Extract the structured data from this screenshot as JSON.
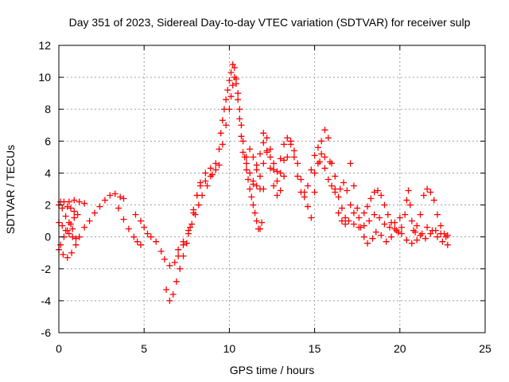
{
  "chart_data": {
    "type": "scatter",
    "title": "Day 351 of 2023, Sidereal Day-to-day VTEC variation (SDTVAR) for receiver sulp",
    "xlabel": "GPS time / hours",
    "ylabel": "SDTVAR / TECUs",
    "xlim": [
      0,
      25
    ],
    "ylim": [
      -6,
      12
    ],
    "xticks": [
      0,
      5,
      10,
      15,
      20,
      25
    ],
    "yticks": [
      -6,
      -4,
      -2,
      0,
      2,
      4,
      6,
      8,
      10,
      12
    ],
    "grid": true,
    "marker": "+",
    "color": "#ff0000",
    "series": [
      {
        "name": "SDTVAR",
        "points": [
          [
            0.0,
            -0.8
          ],
          [
            0.25,
            -1.1
          ],
          [
            0.5,
            -1.3
          ],
          [
            0.75,
            -1.0
          ],
          [
            1.0,
            -0.5
          ],
          [
            1.2,
            0.0
          ],
          [
            1.5,
            0.6
          ],
          [
            1.8,
            1.0
          ],
          [
            2.1,
            1.5
          ],
          [
            2.4,
            1.9
          ],
          [
            2.7,
            2.3
          ],
          [
            3.0,
            2.6
          ],
          [
            3.3,
            2.7
          ],
          [
            3.6,
            2.5
          ],
          [
            3.8,
            2.4
          ],
          [
            0.0,
            0.9
          ],
          [
            0.2,
            0.7
          ],
          [
            0.4,
            0.4
          ],
          [
            0.6,
            0.2
          ],
          [
            0.8,
            0.0
          ],
          [
            1.0,
            -0.1
          ],
          [
            0.8,
            0.5
          ],
          [
            0.6,
            0.9
          ],
          [
            0.4,
            1.3
          ],
          [
            0.2,
            1.8
          ],
          [
            0.1,
            2.2
          ],
          [
            0.0,
            2.0
          ],
          [
            0.3,
            2.2
          ],
          [
            0.6,
            2.2
          ],
          [
            0.9,
            2.3
          ],
          [
            1.2,
            2.2
          ],
          [
            1.5,
            2.1
          ],
          [
            0.1,
            -0.5
          ],
          [
            0.3,
            0.0
          ],
          [
            0.5,
            0.4
          ],
          [
            0.7,
            0.8
          ],
          [
            0.9,
            1.2
          ],
          [
            1.1,
            1.4
          ],
          [
            0.9,
            1.6
          ],
          [
            0.7,
            1.8
          ],
          [
            0.5,
            1.9
          ],
          [
            3.5,
            1.8
          ],
          [
            3.8,
            1.1
          ],
          [
            4.1,
            0.5
          ],
          [
            4.4,
            0.0
          ],
          [
            4.6,
            -0.3
          ],
          [
            4.8,
            -0.5
          ],
          [
            4.5,
            1.4
          ],
          [
            4.8,
            1.0
          ],
          [
            5.0,
            0.6
          ],
          [
            5.2,
            0.2
          ],
          [
            5.4,
            0.0
          ],
          [
            5.7,
            -0.3
          ],
          [
            6.0,
            -0.9
          ],
          [
            6.2,
            -1.4
          ],
          [
            6.5,
            -1.8
          ],
          [
            6.8,
            -1.6
          ],
          [
            7.0,
            -1.2
          ],
          [
            7.3,
            -0.5
          ],
          [
            7.6,
            0.4
          ],
          [
            7.9,
            1.5
          ],
          [
            8.1,
            2.6
          ],
          [
            8.3,
            3.2
          ],
          [
            8.6,
            3.5
          ],
          [
            8.9,
            3.8
          ],
          [
            9.2,
            4.2
          ],
          [
            6.3,
            -3.3
          ],
          [
            6.5,
            -4.0
          ],
          [
            6.7,
            -3.6
          ],
          [
            6.9,
            -2.8
          ],
          [
            7.1,
            -2.0
          ],
          [
            7.3,
            -1.2
          ],
          [
            7.5,
            -0.4
          ],
          [
            7.7,
            0.6
          ],
          [
            7.9,
            1.7
          ],
          [
            8.1,
            2.6
          ],
          [
            8.3,
            3.4
          ],
          [
            8.6,
            4.0
          ],
          [
            8.9,
            4.3
          ],
          [
            7.0,
            -0.8
          ],
          [
            7.3,
            -0.3
          ],
          [
            7.6,
            0.2
          ],
          [
            7.8,
            0.8
          ],
          [
            8.0,
            1.4
          ],
          [
            8.2,
            2.0
          ],
          [
            8.4,
            2.6
          ],
          [
            8.7,
            3.2
          ],
          [
            9.0,
            3.9
          ],
          [
            9.2,
            4.6
          ],
          [
            9.4,
            5.5
          ],
          [
            9.5,
            6.5
          ],
          [
            9.6,
            7.3
          ],
          [
            9.7,
            8.0
          ],
          [
            9.8,
            8.6
          ],
          [
            9.9,
            9.2
          ],
          [
            10.0,
            9.8
          ],
          [
            10.1,
            10.3
          ],
          [
            10.2,
            10.8
          ],
          [
            10.3,
            10.6
          ],
          [
            10.4,
            9.9
          ],
          [
            10.5,
            9.0
          ],
          [
            10.6,
            8.0
          ],
          [
            10.7,
            7.0
          ],
          [
            10.8,
            6.0
          ],
          [
            10.9,
            5.0
          ],
          [
            11.0,
            4.2
          ],
          [
            11.1,
            3.6
          ],
          [
            11.2,
            3.0
          ],
          [
            11.3,
            2.5
          ],
          [
            11.4,
            2.0
          ],
          [
            11.5,
            1.5
          ],
          [
            11.6,
            1.0
          ],
          [
            11.7,
            0.5
          ],
          [
            11.8,
            0.5
          ],
          [
            11.9,
            0.9
          ],
          [
            9.4,
            4.5
          ],
          [
            9.6,
            5.8
          ],
          [
            9.8,
            7.0
          ],
          [
            10.0,
            8.0
          ],
          [
            10.1,
            8.8
          ],
          [
            10.2,
            9.5
          ],
          [
            10.3,
            10.0
          ],
          [
            10.4,
            9.6
          ],
          [
            10.5,
            8.6
          ],
          [
            10.6,
            7.4
          ],
          [
            10.7,
            6.3
          ],
          [
            10.8,
            5.3
          ],
          [
            11.0,
            4.6
          ],
          [
            11.2,
            4.0
          ],
          [
            11.4,
            3.5
          ],
          [
            11.6,
            3.2
          ],
          [
            11.8,
            3.0
          ],
          [
            12.0,
            3.0
          ],
          [
            11.4,
            3.3
          ],
          [
            11.6,
            4.2
          ],
          [
            11.8,
            5.2
          ],
          [
            12.0,
            5.9
          ],
          [
            12.2,
            5.4
          ],
          [
            12.4,
            4.3
          ],
          [
            12.6,
            3.2
          ],
          [
            12.8,
            2.6
          ],
          [
            13.0,
            2.9
          ],
          [
            13.2,
            3.8
          ],
          [
            13.4,
            5.0
          ],
          [
            13.6,
            5.8
          ],
          [
            13.8,
            5.0
          ],
          [
            14.0,
            3.8
          ],
          [
            14.2,
            2.8
          ],
          [
            14.4,
            2.5
          ],
          [
            14.6,
            3.2
          ],
          [
            14.8,
            4.2
          ],
          [
            15.0,
            5.1
          ],
          [
            15.2,
            5.6
          ],
          [
            15.4,
            5.2
          ],
          [
            15.6,
            4.3
          ],
          [
            15.8,
            3.6
          ],
          [
            16.0,
            3.2
          ],
          [
            16.2,
            3.0
          ],
          [
            16.4,
            2.5
          ],
          [
            16.6,
            1.8
          ],
          [
            16.8,
            1.2
          ],
          [
            17.0,
            1.0
          ],
          [
            17.3,
            0.8
          ],
          [
            17.6,
            0.6
          ],
          [
            17.9,
            0.7
          ],
          [
            18.2,
            1.0
          ],
          [
            18.5,
            1.4
          ],
          [
            18.8,
            1.2
          ],
          [
            19.1,
            0.8
          ],
          [
            19.4,
            0.6
          ],
          [
            19.7,
            0.9
          ],
          [
            20.0,
            1.2
          ],
          [
            12.0,
            6.5
          ],
          [
            12.2,
            6.2
          ],
          [
            12.4,
            5.5
          ],
          [
            12.6,
            4.6
          ],
          [
            12.8,
            4.1
          ],
          [
            13.0,
            4.9
          ],
          [
            13.2,
            5.8
          ],
          [
            13.4,
            6.2
          ],
          [
            13.6,
            6.0
          ],
          [
            13.8,
            5.4
          ],
          [
            14.0,
            4.6
          ],
          [
            14.2,
            3.6
          ],
          [
            14.4,
            2.8
          ],
          [
            14.6,
            1.9
          ],
          [
            14.8,
            1.2
          ],
          [
            15.0,
            2.8
          ],
          [
            15.2,
            4.6
          ],
          [
            15.4,
            6.0
          ],
          [
            15.6,
            6.7
          ],
          [
            15.8,
            6.2
          ],
          [
            16.0,
            4.6
          ],
          [
            16.2,
            2.8
          ],
          [
            16.4,
            1.5
          ],
          [
            16.6,
            1.0
          ],
          [
            16.8,
            0.8
          ],
          [
            11.0,
            5.0
          ],
          [
            11.2,
            5.5
          ],
          [
            11.4,
            5.0
          ],
          [
            11.6,
            4.5
          ],
          [
            11.8,
            3.8
          ],
          [
            12.0,
            4.6
          ],
          [
            12.2,
            5.3
          ],
          [
            12.4,
            5.0
          ],
          [
            12.6,
            4.2
          ],
          [
            12.8,
            3.5
          ],
          [
            13.0,
            4.0
          ],
          [
            13.2,
            4.8
          ],
          [
            15.0,
            4.0
          ],
          [
            15.3,
            4.7
          ],
          [
            15.6,
            5.0
          ],
          [
            15.9,
            4.7
          ],
          [
            16.2,
            3.8
          ],
          [
            16.5,
            3.0
          ],
          [
            16.7,
            3.4
          ],
          [
            16.9,
            2.9
          ],
          [
            17.1,
            2.0
          ],
          [
            17.3,
            1.5
          ],
          [
            17.1,
            4.6
          ],
          [
            17.3,
            3.2
          ],
          [
            17.5,
            1.8
          ],
          [
            17.7,
            0.6
          ],
          [
            17.9,
            0.0
          ],
          [
            18.1,
            -0.4
          ],
          [
            18.4,
            -0.1
          ],
          [
            18.6,
            0.3
          ],
          [
            18.9,
            0.1
          ],
          [
            19.2,
            -0.3
          ],
          [
            19.5,
            0.0
          ],
          [
            19.8,
            0.4
          ],
          [
            20.1,
            0.2
          ],
          [
            20.4,
            -0.2
          ],
          [
            20.7,
            -0.4
          ],
          [
            21.0,
            -0.2
          ],
          [
            21.3,
            0.2
          ],
          [
            21.6,
            0.6
          ],
          [
            21.9,
            0.4
          ],
          [
            22.2,
            0.0
          ],
          [
            22.5,
            -0.3
          ],
          [
            22.8,
            -0.5
          ],
          [
            17.6,
            1.2
          ],
          [
            17.9,
            1.5
          ],
          [
            18.1,
            1.9
          ],
          [
            18.3,
            2.4
          ],
          [
            18.5,
            2.8
          ],
          [
            18.7,
            2.9
          ],
          [
            18.9,
            2.6
          ],
          [
            19.1,
            2.0
          ],
          [
            19.3,
            1.4
          ],
          [
            19.5,
            0.9
          ],
          [
            19.7,
            0.5
          ],
          [
            19.9,
            0.3
          ],
          [
            20.1,
            0.6
          ],
          [
            20.3,
            1.4
          ],
          [
            20.4,
            2.3
          ],
          [
            20.5,
            2.9
          ],
          [
            20.6,
            2.0
          ],
          [
            20.7,
            1.0
          ],
          [
            20.9,
            0.3
          ],
          [
            21.2,
            0.1
          ],
          [
            21.5,
            -0.1
          ],
          [
            21.8,
            0.2
          ],
          [
            22.1,
            0.4
          ],
          [
            22.4,
            0.2
          ],
          [
            22.7,
            0.0
          ],
          [
            20.8,
            0.4
          ],
          [
            21.0,
            0.7
          ],
          [
            21.2,
            1.4
          ],
          [
            21.4,
            2.6
          ],
          [
            21.6,
            3.0
          ],
          [
            21.8,
            2.8
          ],
          [
            22.0,
            2.3
          ],
          [
            22.2,
            1.4
          ],
          [
            22.4,
            0.7
          ],
          [
            22.6,
            0.2
          ],
          [
            22.8,
            0.1
          ]
        ]
      }
    ]
  }
}
